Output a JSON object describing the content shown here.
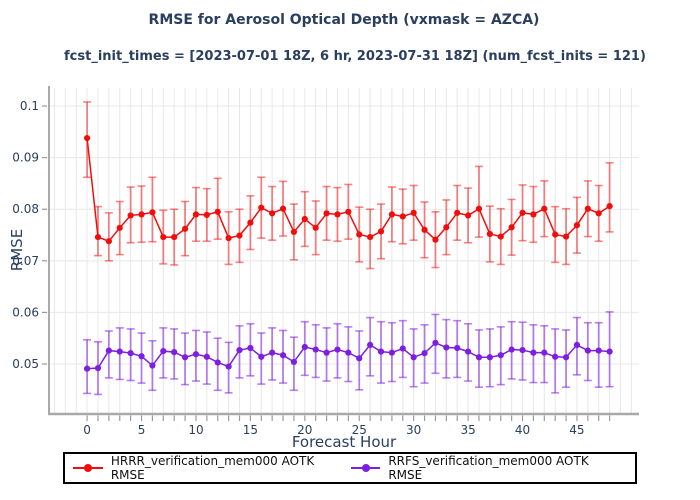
{
  "style": {
    "text_color": "#2a3f5f",
    "grid_color": "#e8e8e8",
    "spine_color": "#a9a9a9",
    "tick_color": "#999999",
    "legend_border_color": "#000000",
    "background": "#ffffff"
  },
  "chart_data": {
    "type": "line",
    "title": "RMSE for Aerosol Optical Depth (vxmask = AZCA)",
    "subtitle": "fcst_init_times = [2023-07-01 18Z, 6 hr, 2023-07-31 18Z] (num_fcst_inits = 121)",
    "xlabel": "Forecast Hour",
    "ylabel": "RMSE",
    "xlim": [
      -3.5,
      50.7
    ],
    "ylim": [
      0.0405,
      0.1035
    ],
    "grid": true,
    "legend_position": "bottom",
    "xticks": [
      0,
      5,
      10,
      15,
      20,
      25,
      30,
      35,
      40,
      45
    ],
    "minor_ticks": {
      "from": 0,
      "to": 48,
      "step": 1
    },
    "yticks": [
      0.05,
      0.06,
      0.07,
      0.08,
      0.09,
      0.1
    ],
    "ytick_labels": [
      "0.05",
      "0.06",
      "0.07",
      "0.08",
      "0.09",
      "0.1"
    ],
    "x": [
      0,
      1,
      2,
      3,
      4,
      5,
      6,
      7,
      8,
      9,
      10,
      11,
      12,
      13,
      14,
      15,
      16,
      17,
      18,
      19,
      20,
      21,
      22,
      23,
      24,
      25,
      26,
      27,
      28,
      29,
      30,
      31,
      32,
      33,
      34,
      35,
      36,
      37,
      38,
      39,
      40,
      41,
      42,
      43,
      44,
      45,
      46,
      47,
      48
    ],
    "series": [
      {
        "id": "hrrr",
        "name": "HRRR_verification_mem000 AOTK RMSE",
        "color": "#f20d0d",
        "error_color": "rgba(242,13,13,0.5)",
        "values": [
          0.0938,
          0.0746,
          0.0738,
          0.0764,
          0.0788,
          0.079,
          0.0794,
          0.0746,
          0.0746,
          0.0762,
          0.079,
          0.0789,
          0.0795,
          0.0744,
          0.0749,
          0.0774,
          0.0803,
          0.0792,
          0.0801,
          0.0756,
          0.0781,
          0.0764,
          0.0792,
          0.079,
          0.0795,
          0.0751,
          0.0746,
          0.0757,
          0.079,
          0.0786,
          0.0793,
          0.076,
          0.0741,
          0.0765,
          0.0793,
          0.0788,
          0.0801,
          0.0752,
          0.0747,
          0.0765,
          0.0793,
          0.079,
          0.0801,
          0.0751,
          0.0747,
          0.0769,
          0.0801,
          0.0792,
          0.0806
        ],
        "err_lo": [
          0.0862,
          0.071,
          0.07,
          0.0712,
          0.0735,
          0.0736,
          0.0737,
          0.0694,
          0.0692,
          0.071,
          0.0738,
          0.0738,
          0.0742,
          0.0693,
          0.0697,
          0.0722,
          0.0744,
          0.074,
          0.0748,
          0.0702,
          0.0728,
          0.0712,
          0.074,
          0.0738,
          0.0742,
          0.0698,
          0.0685,
          0.0704,
          0.0737,
          0.0733,
          0.074,
          0.0706,
          0.0687,
          0.0712,
          0.074,
          0.0735,
          0.0746,
          0.0698,
          0.0693,
          0.0711,
          0.0739,
          0.0736,
          0.0747,
          0.0697,
          0.0693,
          0.0715,
          0.0747,
          0.0738,
          0.0756
        ],
        "err_hi": [
          0.1008,
          0.0805,
          0.0793,
          0.0815,
          0.0843,
          0.0845,
          0.0862,
          0.0798,
          0.08,
          0.0815,
          0.0842,
          0.084,
          0.086,
          0.0795,
          0.08,
          0.0826,
          0.0862,
          0.0844,
          0.0854,
          0.081,
          0.0834,
          0.0816,
          0.0844,
          0.0842,
          0.0848,
          0.0804,
          0.08,
          0.081,
          0.0843,
          0.0839,
          0.0846,
          0.0814,
          0.0795,
          0.0818,
          0.0846,
          0.0841,
          0.0883,
          0.0806,
          0.0801,
          0.0819,
          0.0847,
          0.0844,
          0.0855,
          0.0805,
          0.0801,
          0.0823,
          0.0855,
          0.0846,
          0.089
        ]
      },
      {
        "id": "rrfs",
        "name": "RRFS_verification_mem000 AOTK RMSE",
        "color": "#7d1ee0",
        "error_color": "rgba(125,30,224,0.55)",
        "values": [
          0.0491,
          0.0492,
          0.0526,
          0.0524,
          0.0521,
          0.0515,
          0.0497,
          0.0525,
          0.0523,
          0.0513,
          0.0519,
          0.0514,
          0.0503,
          0.0495,
          0.0527,
          0.0531,
          0.0514,
          0.0522,
          0.0517,
          0.0504,
          0.0533,
          0.0528,
          0.0522,
          0.0528,
          0.0522,
          0.0511,
          0.0537,
          0.0524,
          0.0522,
          0.053,
          0.0513,
          0.0521,
          0.0541,
          0.0532,
          0.0531,
          0.0524,
          0.0513,
          0.0513,
          0.0517,
          0.0528,
          0.0527,
          0.0522,
          0.0522,
          0.0514,
          0.0513,
          0.0537,
          0.0526,
          0.0526,
          0.0524
        ],
        "err_lo": [
          0.0443,
          0.0441,
          0.0473,
          0.047,
          0.0468,
          0.0463,
          0.0449,
          0.0473,
          0.0471,
          0.046,
          0.0467,
          0.0461,
          0.0449,
          0.0444,
          0.0473,
          0.0477,
          0.0461,
          0.0469,
          0.0463,
          0.0449,
          0.0478,
          0.0474,
          0.0467,
          0.0473,
          0.0466,
          0.045,
          0.0477,
          0.0463,
          0.0466,
          0.0474,
          0.0456,
          0.0463,
          0.0482,
          0.0473,
          0.0474,
          0.0467,
          0.0455,
          0.0456,
          0.046,
          0.0471,
          0.0469,
          0.0464,
          0.0464,
          0.0444,
          0.0455,
          0.0479,
          0.0468,
          0.0455,
          0.0456
        ],
        "err_hi": [
          0.0547,
          0.0543,
          0.0564,
          0.057,
          0.0568,
          0.056,
          0.0545,
          0.057,
          0.0568,
          0.056,
          0.0565,
          0.0562,
          0.055,
          0.0542,
          0.0574,
          0.0578,
          0.056,
          0.057,
          0.0565,
          0.0552,
          0.0582,
          0.0576,
          0.057,
          0.0578,
          0.0572,
          0.0564,
          0.059,
          0.0582,
          0.058,
          0.0584,
          0.0568,
          0.0576,
          0.0596,
          0.0586,
          0.0584,
          0.0578,
          0.0566,
          0.0568,
          0.0572,
          0.0582,
          0.0581,
          0.0576,
          0.0574,
          0.0568,
          0.0566,
          0.059,
          0.058,
          0.058,
          0.0601
        ]
      }
    ]
  }
}
